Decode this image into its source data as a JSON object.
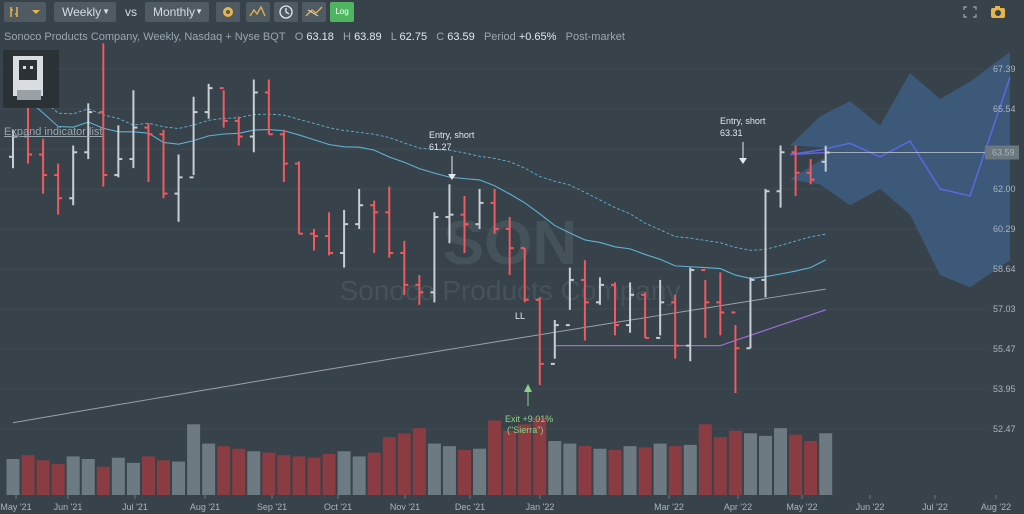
{
  "toolbar": {
    "interval_label": "Weekly",
    "vs_label": "vs",
    "compare_label": "Monthly",
    "log_label": "Log"
  },
  "legend": {
    "symbol": "Sonoco Products Company, Weekly, Nasdaq + Nyse BQT",
    "o_label": "O",
    "o_value": "63.18",
    "h_label": "H",
    "h_value": "63.89",
    "l_label": "L",
    "l_value": "62.75",
    "c_label": "C",
    "c_value": "63.59",
    "period_label": "Period",
    "period_value": "+0.65%",
    "session": "Post-market"
  },
  "expand_label": "Expand indicator list",
  "watermark": {
    "ticker": "SON",
    "name": "Sonoco Products Company"
  },
  "colors": {
    "up": "#c8ced3",
    "down": "#f05a5f",
    "ma_long": "#5fb2d4",
    "ma_slow": "#9aa1a6",
    "bands": "#9b6fd6",
    "forecast": "#5c66d8",
    "forecast_cloud": "#3d5f86",
    "vol_up": "#6e7a82",
    "vol_down": "#8a3c42"
  },
  "annotations": [
    {
      "title": "Entry, short",
      "value": "61.27"
    },
    {
      "title": "Entry, short",
      "value": "63.31"
    },
    {
      "title": "Exit +9.01%",
      "value": "(\"Sierra\")"
    },
    {
      "title": "LL",
      "value": ""
    }
  ],
  "chart_data": {
    "type": "ohlc",
    "price_axis": {
      "ticks": [
        "67.39",
        "65.54",
        "63.74",
        "62.00",
        "60.29",
        "58.64",
        "57.03",
        "55.47",
        "53.95",
        "52.47"
      ],
      "last_price": "63.59",
      "scale": "log"
    },
    "time_axis": [
      "May '21",
      "Jun '21",
      "Jul '21",
      "Aug '21",
      "Sep '21",
      "Oct '21",
      "Nov '21",
      "Dec '21",
      "Jan '22",
      "Mar '22",
      "Apr '22",
      "May '22",
      "Jun '22",
      "Jul '22",
      "Aug '22"
    ],
    "bars": [
      [
        63.4,
        64.6,
        62.9,
        64.3
      ],
      [
        64.3,
        65.8,
        63.1,
        63.5
      ],
      [
        63.5,
        64.2,
        61.8,
        62.6
      ],
      [
        62.6,
        63.1,
        60.9,
        61.6
      ],
      [
        61.6,
        63.9,
        61.3,
        63.6
      ],
      [
        63.6,
        65.8,
        63.3,
        65.4
      ],
      [
        65.4,
        68.6,
        62.1,
        62.6
      ],
      [
        62.6,
        64.8,
        62.5,
        63.3
      ],
      [
        63.3,
        66.4,
        62.9,
        64.7
      ],
      [
        64.7,
        64.9,
        62.3,
        64.4
      ],
      [
        64.4,
        64.6,
        61.6,
        61.8
      ],
      [
        61.8,
        63.5,
        60.6,
        62.5
      ],
      [
        62.5,
        66.1,
        62.6,
        65.4
      ],
      [
        65.4,
        66.7,
        65.1,
        66.5
      ],
      [
        66.5,
        66.4,
        64.7,
        65.0
      ],
      [
        65.0,
        65.2,
        63.9,
        64.3
      ],
      [
        64.3,
        66.9,
        63.6,
        66.3
      ],
      [
        66.3,
        66.9,
        64.4,
        64.4
      ],
      [
        64.4,
        64.6,
        62.3,
        63.1
      ],
      [
        63.1,
        63.2,
        60.1,
        60.1
      ],
      [
        60.1,
        60.3,
        59.4,
        60.0
      ],
      [
        60.0,
        61.0,
        59.2,
        59.3
      ],
      [
        59.3,
        61.1,
        58.7,
        60.5
      ],
      [
        60.5,
        62.0,
        60.3,
        61.3
      ],
      [
        61.3,
        61.5,
        59.3,
        61.0
      ],
      [
        61.0,
        62.1,
        59.1,
        59.3
      ],
      [
        59.3,
        59.8,
        57.6,
        58.0
      ],
      [
        58.0,
        58.4,
        57.2,
        57.7
      ],
      [
        57.7,
        61.0,
        57.3,
        60.8
      ],
      [
        60.8,
        62.2,
        59.7,
        60.9
      ],
      [
        60.9,
        61.7,
        59.3,
        60.5
      ],
      [
        60.5,
        62.0,
        60.3,
        61.4
      ],
      [
        61.4,
        62.0,
        60.1,
        60.3
      ],
      [
        60.3,
        60.8,
        58.4,
        59.5
      ],
      [
        59.5,
        59.5,
        57.3,
        57.4
      ],
      [
        57.4,
        57.5,
        54.1,
        54.9
      ],
      [
        54.9,
        56.6,
        55.1,
        56.4
      ],
      [
        56.4,
        58.7,
        57.0,
        58.2
      ],
      [
        58.2,
        59.0,
        55.8,
        57.3
      ],
      [
        57.3,
        58.3,
        57.2,
        58.0
      ],
      [
        58.0,
        58.1,
        56.0,
        56.4
      ],
      [
        56.4,
        58.1,
        56.1,
        57.6
      ],
      [
        57.6,
        57.7,
        55.9,
        55.9
      ],
      [
        55.9,
        58.2,
        56.0,
        57.3
      ],
      [
        57.3,
        57.6,
        55.1,
        55.6
      ],
      [
        55.6,
        58.7,
        55.0,
        58.6
      ],
      [
        58.6,
        58.2,
        55.9,
        57.3
      ],
      [
        57.3,
        58.5,
        56.0,
        56.9
      ],
      [
        56.9,
        56.4,
        53.8,
        55.5
      ],
      [
        55.5,
        58.3,
        55.5,
        58.2
      ],
      [
        58.2,
        62.0,
        57.5,
        61.9
      ],
      [
        61.9,
        63.9,
        61.2,
        63.6
      ],
      [
        63.6,
        63.9,
        61.7,
        62.7
      ],
      [
        62.7,
        63.3,
        62.2,
        62.4
      ],
      [
        63.18,
        63.89,
        62.75,
        63.59
      ]
    ],
    "volume": [
      28,
      31,
      27,
      24,
      30,
      28,
      22,
      29,
      25,
      30,
      27,
      26,
      55,
      40,
      38,
      36,
      34,
      33,
      31,
      30,
      29,
      32,
      34,
      30,
      33,
      45,
      48,
      52,
      40,
      38,
      35,
      36,
      58,
      50,
      55,
      60,
      42,
      40,
      38,
      36,
      35,
      38,
      37,
      40,
      38,
      39,
      55,
      45,
      50,
      48,
      46,
      52,
      47,
      42,
      48
    ],
    "vol_axis_max": 70
  }
}
